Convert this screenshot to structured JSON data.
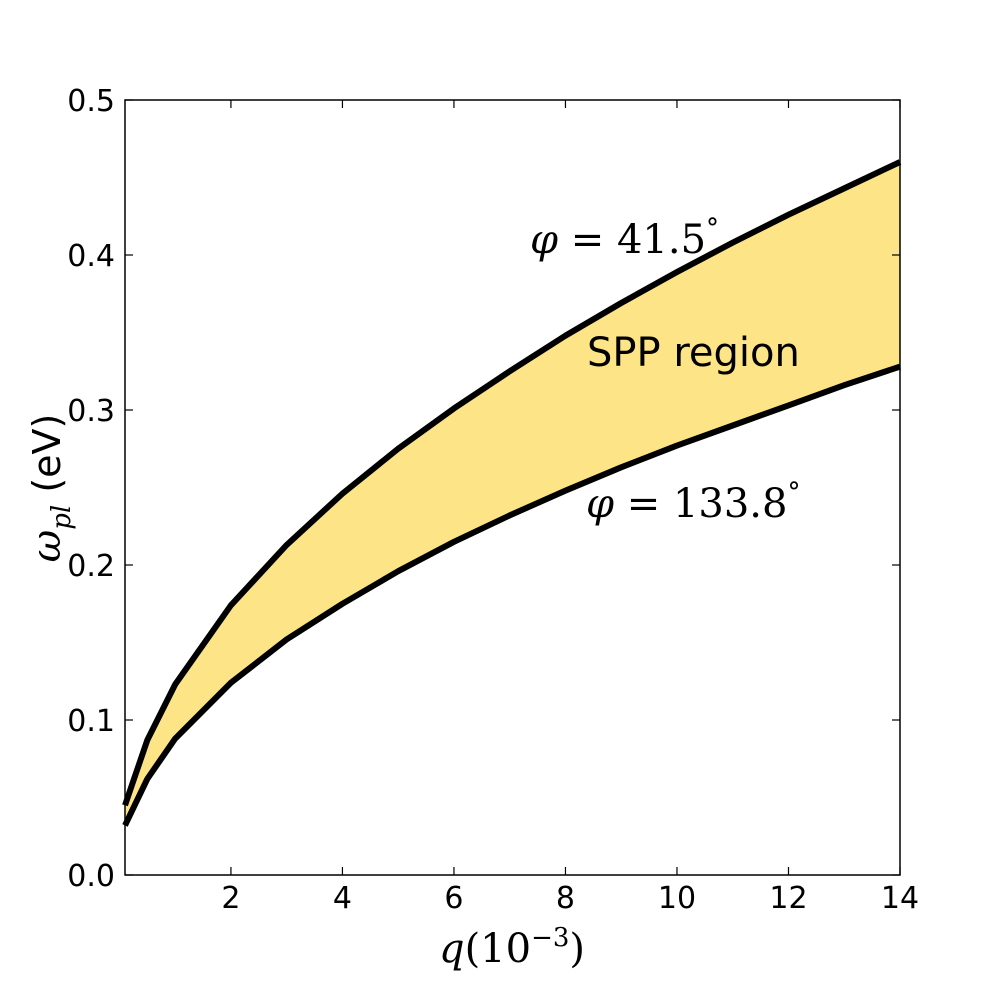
{
  "chart_data": {
    "type": "area",
    "xlabel_var": "q",
    "xlabel_rest": "(10",
    "xlabel_sup": "−3",
    "xlabel_close": ")",
    "ylabel_var": "ω",
    "ylabel_sub": "pl",
    "ylabel_unit": " (eV)",
    "xlim": [
      0.1,
      14
    ],
    "ylim": [
      0,
      0.5
    ],
    "xticks": [
      2,
      4,
      6,
      8,
      10,
      12,
      14
    ],
    "xtick_labels": [
      "2",
      "4",
      "6",
      "8",
      "10",
      "12",
      "14"
    ],
    "yticks": [
      0.0,
      0.1,
      0.2,
      0.3,
      0.4,
      0.5
    ],
    "ytick_labels": [
      "0.0",
      "0.1",
      "0.2",
      "0.3",
      "0.4",
      "0.5"
    ],
    "grid": false,
    "fill_color": "#fde486",
    "line_color": "#000000",
    "region_label": "SPP region",
    "series": [
      {
        "name": "φ = 41.5°",
        "x": [
          0.1,
          0.5,
          1,
          2,
          3,
          4,
          5,
          6,
          7,
          8,
          9,
          10,
          11,
          12,
          13,
          14
        ],
        "values": [
          0.045,
          0.087,
          0.123,
          0.174,
          0.213,
          0.246,
          0.275,
          0.301,
          0.325,
          0.348,
          0.369,
          0.389,
          0.408,
          0.426,
          0.443,
          0.46
        ]
      },
      {
        "name": "φ = 133.8°",
        "x": [
          0.1,
          0.5,
          1,
          2,
          3,
          4,
          5,
          6,
          7,
          8,
          9,
          10,
          11,
          12,
          13,
          14
        ],
        "values": [
          0.032,
          0.062,
          0.088,
          0.124,
          0.152,
          0.175,
          0.196,
          0.215,
          0.232,
          0.248,
          0.263,
          0.277,
          0.29,
          0.303,
          0.316,
          0.328
        ]
      }
    ],
    "annotations": {
      "upper_prefix": "φ = ",
      "upper_value": "41.5",
      "upper_degree": "°",
      "lower_prefix": "φ = ",
      "lower_value": "133.8",
      "lower_degree": "°"
    }
  }
}
